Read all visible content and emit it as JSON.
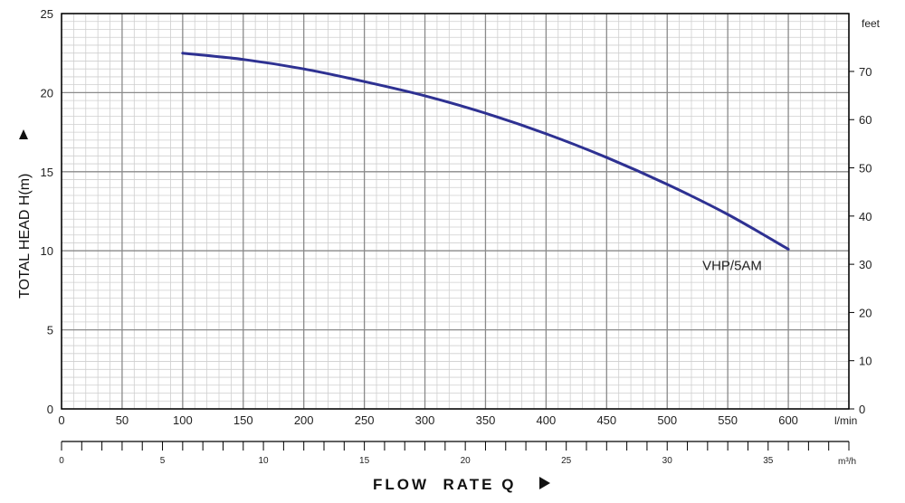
{
  "chart_data": {
    "type": "line",
    "x_axis": {
      "label": "FLOW  RATE Q",
      "unit": "l/min",
      "range": [
        0,
        650
      ],
      "major_ticks": [
        0,
        50,
        100,
        150,
        200,
        250,
        300,
        350,
        400,
        450,
        500,
        550,
        600
      ]
    },
    "x_axis_secondary": {
      "unit": "m³/h",
      "range": [
        0,
        39
      ],
      "labeled_ticks": [
        0,
        5,
        10,
        15,
        20,
        25,
        30,
        35
      ]
    },
    "y_axis": {
      "label": "TOTAL HEAD H(m)",
      "range": [
        0,
        25
      ],
      "major_ticks": [
        0,
        5,
        10,
        15,
        20,
        25
      ]
    },
    "y_axis_secondary": {
      "unit": "feet",
      "range": [
        0,
        82
      ],
      "major_ticks": [
        0,
        10,
        20,
        30,
        40,
        50,
        60,
        70
      ]
    },
    "grid": true,
    "series": [
      {
        "name": "VHP/5AM",
        "color": "#2e3192",
        "x": [
          100,
          150,
          200,
          250,
          300,
          350,
          400,
          450,
          500,
          550,
          600
        ],
        "y": [
          22.5,
          22.1,
          21.5,
          20.7,
          19.8,
          18.7,
          17.4,
          15.9,
          14.2,
          12.3,
          10.1
        ]
      }
    ]
  }
}
